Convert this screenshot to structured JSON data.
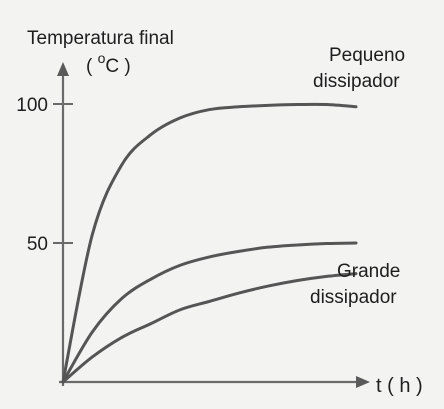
{
  "chart_data": {
    "type": "line",
    "title": "",
    "ylabel_line1": "Temperatura final",
    "ylabel_unit_open": "( ",
    "ylabel_unit_degree": "o",
    "ylabel_unit_rest": "C )",
    "xlabel": "t ( h )",
    "y_ticks": [
      {
        "value": 50,
        "label": "50"
      },
      {
        "value": 100,
        "label": "100"
      }
    ],
    "x_ticks": [],
    "ylim": [
      0,
      120
    ],
    "xlim": [
      0,
      10
    ],
    "grid": false,
    "legend": "none",
    "annotations": [
      {
        "text_line1": "Pequeno",
        "text_line2": "dissipador",
        "refers_to": "top curve"
      },
      {
        "text_line1": "Grande",
        "text_line2": "dissipador",
        "refers_to": "bottom curve"
      }
    ],
    "series": [
      {
        "asymptote": 100,
        "rate": 0.75,
        "color": "#555555",
        "x": [
          0,
          1,
          2,
          3,
          4,
          5,
          6,
          7,
          8,
          9,
          10
        ],
        "values": [
          0,
          53,
          78,
          89,
          95,
          98,
          99,
          99.5,
          99.8,
          99.8,
          99
        ]
      },
      {
        "asymptote": 50,
        "rate": 0.45,
        "color": "#555555",
        "x": [
          0,
          1,
          2,
          3,
          4,
          5,
          6,
          7,
          8,
          9,
          10
        ],
        "values": [
          0,
          18,
          30,
          37,
          42,
          45,
          47,
          48.5,
          49.3,
          49.8,
          50
        ]
      },
      {
        "asymptote": 42,
        "rate": 0.22,
        "color": "#555555",
        "x": [
          0,
          1,
          2,
          3,
          4,
          5,
          6,
          7,
          8,
          9,
          10
        ],
        "values": [
          0,
          9,
          16,
          21,
          26,
          29,
          32,
          34.5,
          36.5,
          38,
          39
        ]
      }
    ]
  }
}
